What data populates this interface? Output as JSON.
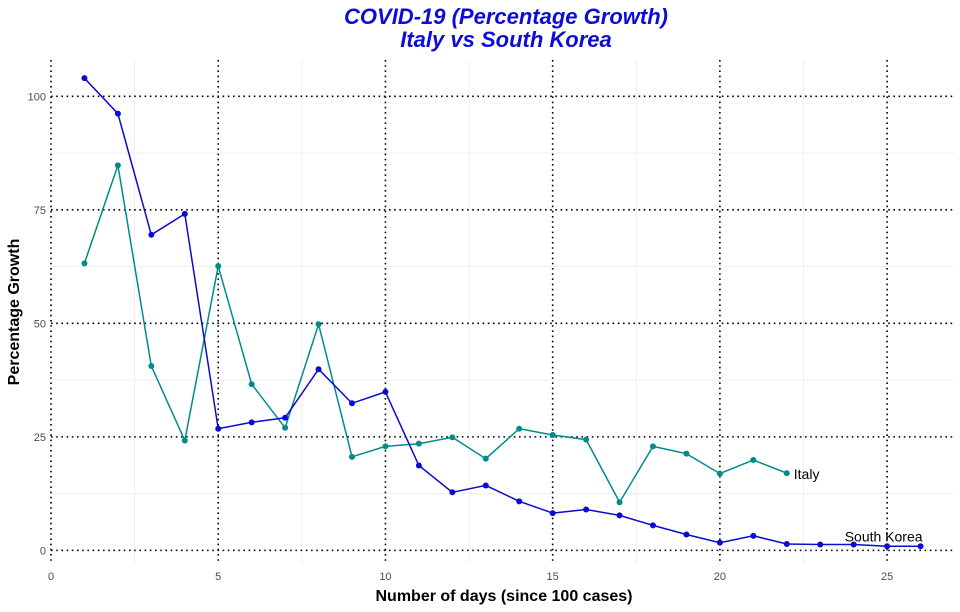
{
  "chart_data": {
    "type": "line",
    "title": "COVID-19 (Percentage Growth)",
    "subtitle": "Italy vs South Korea",
    "xlabel": "Number of days (since 100 cases)",
    "ylabel": "Percentage Growth",
    "xlim": [
      0,
      27
    ],
    "ylim": [
      -3,
      108
    ],
    "x_ticks": [
      0,
      5,
      10,
      15,
      20,
      25
    ],
    "y_ticks": [
      0,
      25,
      50,
      75,
      100
    ],
    "x_tick_labels": [
      "0",
      "5",
      "10",
      "15",
      "20",
      "25"
    ],
    "y_tick_labels": [
      "0",
      "25",
      "50",
      "75",
      "100"
    ],
    "grid": true,
    "legend": "none",
    "series": [
      {
        "name": "Italy",
        "color": "#008b8b",
        "x": [
          1,
          2,
          3,
          4,
          5,
          6,
          7,
          8,
          9,
          10,
          11,
          12,
          13,
          14,
          15,
          16,
          17,
          18,
          19,
          20,
          21,
          22
        ],
        "values": [
          63.2,
          84.8,
          40.6,
          24.2,
          62.6,
          36.6,
          27.0,
          49.8,
          20.6,
          22.9,
          23.5,
          24.9,
          20.2,
          26.8,
          25.4,
          24.4,
          10.6,
          22.9,
          21.3,
          16.9,
          19.9,
          17.0
        ]
      },
      {
        "name": "South Korea",
        "color": "#0b0bd0",
        "x": [
          1,
          2,
          3,
          4,
          5,
          6,
          7,
          8,
          9,
          10,
          11,
          12,
          13,
          14,
          15,
          16,
          17,
          18,
          19,
          20,
          21,
          22,
          23,
          24,
          25,
          26
        ],
        "values": [
          104.0,
          96.2,
          69.5,
          74.1,
          26.8,
          28.2,
          29.2,
          39.9,
          32.4,
          34.9,
          18.7,
          12.8,
          14.3,
          10.8,
          8.2,
          9.0,
          7.7,
          5.5,
          3.5,
          1.7,
          3.2,
          1.4,
          1.3,
          1.3,
          0.9,
          0.9
        ]
      }
    ]
  }
}
